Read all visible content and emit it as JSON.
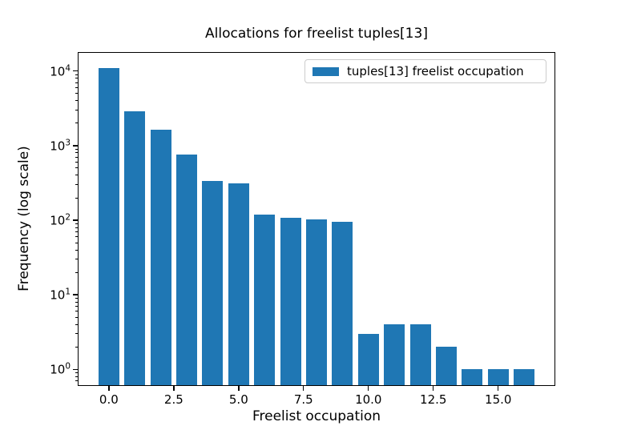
{
  "figure": {
    "background": "#ffffff",
    "text_color": "#000000"
  },
  "chart_data": {
    "type": "bar",
    "title": "Allocations for freelist tuples[13]",
    "xlabel": "Freelist occupation",
    "ylabel": "Frequency (log scale)",
    "yscale": "log",
    "grid": false,
    "x": [
      0,
      1,
      2,
      3,
      4,
      5,
      6,
      7,
      8,
      9,
      10,
      11,
      12,
      13,
      14,
      15,
      16
    ],
    "values": [
      11000,
      2900,
      1650,
      760,
      340,
      315,
      120,
      108,
      102,
      95,
      3,
      4,
      4,
      2,
      1,
      1,
      1
    ],
    "bar_width": 0.8,
    "bar_color": "#1f77b4",
    "xlim": [
      -1.2,
      17.2
    ],
    "ylim": [
      0.6,
      18000
    ],
    "xticks": [
      0,
      2.5,
      5,
      7.5,
      10,
      12.5,
      15
    ],
    "xtick_labels": [
      "0.0",
      "2.5",
      "5.0",
      "7.5",
      "10.0",
      "12.5",
      "15.0"
    ],
    "ytick_base": "10",
    "ytick_exponents": [
      0,
      1,
      2,
      3,
      4
    ],
    "legend": {
      "position": "upper right",
      "entries": [
        {
          "label": "tuples[13] freelist occupation",
          "swatch_color": "#1f77b4"
        }
      ]
    }
  }
}
